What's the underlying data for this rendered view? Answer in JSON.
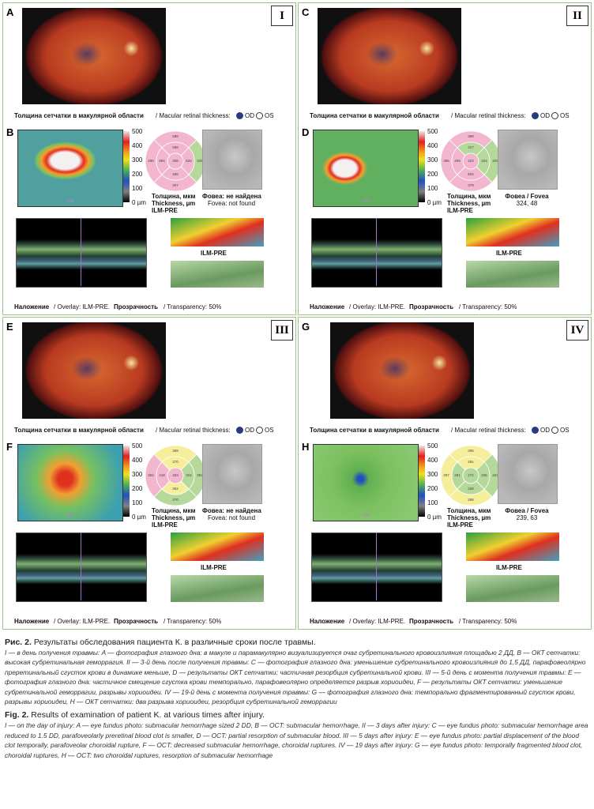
{
  "panels": [
    {
      "roman": "I",
      "fundus_label": "A",
      "oct_label": "B",
      "thickness_ru": "Толщина сетчатки в макулярной области",
      "thickness_en": "/ Macular retinal thickness:",
      "od": "OD",
      "os": "OS",
      "colorbar_ticks": [
        "500",
        "400",
        "300",
        "200",
        "100",
        "0 µm"
      ],
      "map_axis": "256",
      "etdrs": [
        "355",
        "568",
        "594",
        "532",
        "496",
        "588",
        "490",
        "326",
        "457"
      ],
      "etdrs_colors": [
        "#f2b6cf",
        "#f2b6cf",
        "#f2b6cf",
        "#f2b6cf",
        "#f2b6cf",
        "#f2b6cf",
        "#f2b6cf",
        "#b5d99a",
        "#f2b6cf"
      ],
      "thickness_caption": [
        "Толщина, мкм",
        "Thickness, µm",
        "ILM-PRE"
      ],
      "fovea_caption": [
        "Фовеа: не найдена",
        "Fovea: not found"
      ],
      "surface_label": "ILM-PRE",
      "overlay_ru": "Наложение",
      "overlay_en": "/ Overlay: ILM-PRE.",
      "transparency_ru": "Прозрачность",
      "transparency_en": "/ Transparency: 50%"
    },
    {
      "roman": "II",
      "fundus_label": "C",
      "oct_label": "D",
      "thickness_ru": "Толщина сетчатки в макулярной области",
      "thickness_en": "/ Macular retinal thickness:",
      "od": "OD",
      "os": "OS",
      "colorbar_ticks": [
        "500",
        "400",
        "300",
        "200",
        "100",
        "0 µm"
      ],
      "map_axis": "324",
      "etdrs": [
        "423",
        "317",
        "469",
        "324",
        "504",
        "388",
        "386",
        "329",
        "379"
      ],
      "etdrs_colors": [
        "#f2b6cf",
        "#b5d99a",
        "#f2b6cf",
        "#b5d99a",
        "#f2b6cf",
        "#f2b6cf",
        "#f2b6cf",
        "#b5d99a",
        "#f2b6cf"
      ],
      "thickness_caption": [
        "Толщина, мкм",
        "Thickness, µm",
        "ILM-PRE"
      ],
      "fovea_caption": [
        "Фовеа / Fovea",
        "324, 48"
      ],
      "surface_label": "ILM-PRE",
      "overlay_ru": "Наложение",
      "overlay_en": "/ Overlay: ILM-PRE.",
      "transparency_ru": "Прозрачность",
      "transparency_en": "/ Transparency: 50%"
    },
    {
      "roman": "III",
      "fundus_label": "E",
      "oct_label": "F",
      "thickness_ru": "Толщина сетчатки в макулярной области",
      "thickness_en": "/ Macular retinal thickness:",
      "od": "OD",
      "os": "OS",
      "colorbar_ticks": [
        "500",
        "400",
        "300",
        "200",
        "100",
        "0 µm"
      ],
      "map_axis": "256",
      "etdrs": [
        "403",
        "370",
        "418",
        "322",
        "362",
        "369",
        "304",
        "352",
        "270"
      ],
      "etdrs_colors": [
        "#f2b6cf",
        "#f5ee9a",
        "#f2b6cf",
        "#b5d99a",
        "#f5ee9a",
        "#f5ee9a",
        "#f2b6cf",
        "#b5d99a",
        "#b5d99a"
      ],
      "thickness_caption": [
        "Толщина, мкм",
        "Thickness, µm",
        "ILM-PRE"
      ],
      "fovea_caption": [
        "Фовеа: не найдена",
        "Fovea: not found"
      ],
      "surface_label": "ILM-PRE",
      "overlay_ru": "Наложение",
      "overlay_en": "/ Overlay: ILM-PRE.",
      "transparency_ru": "Прозрачность",
      "transparency_en": "/ Transparency: 50%"
    },
    {
      "roman": "IV",
      "fundus_label": "G",
      "oct_label": "H",
      "thickness_ru": "Толщина сетчатки в макулярной области",
      "thickness_en": "/ Macular retinal thickness:",
      "od": "OD",
      "os": "OS",
      "colorbar_ticks": [
        "500",
        "400",
        "300",
        "200",
        "100",
        "0 µm"
      ],
      "map_axis": "239",
      "etdrs": [
        "272",
        "281",
        "281",
        "345",
        "268",
        "306",
        "297",
        "322",
        "288"
      ],
      "etdrs_colors": [
        "#b5d99a",
        "#f5ee9a",
        "#b5d99a",
        "#b5d99a",
        "#b5d99a",
        "#f5ee9a",
        "#f5ee9a",
        "#b5d99a",
        "#f5ee9a"
      ],
      "thickness_caption": [
        "Толщина, мкм",
        "Thickness, µm",
        "ILM-PRE"
      ],
      "fovea_caption": [
        "Фовеа / Fovea",
        "239, 63"
      ],
      "surface_label": "ILM-PRE",
      "overlay_ru": "Наложение",
      "overlay_en": "/ Overlay: ILM-PRE.",
      "transparency_ru": "Прозрачность",
      "transparency_en": "/ Transparency: 50%"
    }
  ],
  "caption": {
    "ru_label": "Рис. 2.",
    "ru_title": "Результаты обследования пациента К. в различные сроки после травмы.",
    "ru_text": "I — в день получения травмы: A — фотография глазного дна: в макуле и парамакулярно визуализируется очаг субретинального кровоизлияния площадью 2 ДД, B — ОКТ сетчатки: высокая субретинальная геморрагия. II — 3-й день после получения травмы: C — фотография глазного дна: уменьшение субретинального кровоизлияния до 1,5 ДД, парафовеолярно преретинальный сгусток крови в динамике меньше, D — результаты ОКТ сетчатки: частичная резорбция субретинальной крови. III — 5-й день с момента получения травмы: E — фотография глазного дна: частичное смещение сгустка крови темпорально, парафовеолярно определяется разрыв хориоидеи, F — результаты ОКТ сетчатки: уменьшение субретинальной геморрагии, разрывы хориоидеи. IV — 19-й день с момента получения травмы: G — фотография глазного дна: темпорально фрагментированный сгусток крови, разрывы хориоидеи, H — ОКТ сетчатки: два разрыва хориоидеи, резорбция субретинальной геморрагии",
    "en_label": "Fig. 2.",
    "en_title": "Results of examination of patient K. at various times after injury.",
    "en_text": "I — on the day of injury: A — eye fundus photo: submacular hemorrhage sized 2 DD, B — OCT: submacular hemorrhage. II — 3 days after injury: C — eye fundus photo: submacular hemorrhage area reduced to 1.5 DD, parafoveolarly preretinal blood clot is smaller, D — OCT: partial resorption of submacular blood. III — 5 days after injury: E — eye fundus photo: partial displacement of the blood clot temporally, parafoveolar choroidal rupture, F — OCT: decreased submacular hemorrhage, choroidal ruptures. IV — 19 days after injury: G — eye fundus photo: temporally fragmented blood clot, choroidal ruptures, H — OCT: two choroidal ruptures, resorption of submacular hemorrhage"
  }
}
